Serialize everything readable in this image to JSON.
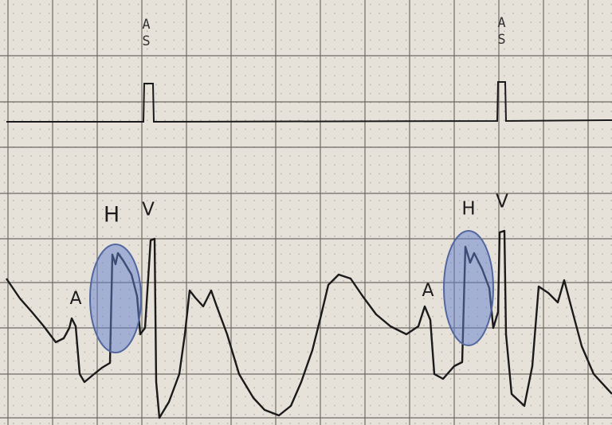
{
  "pacing_markers": [
    "AS",
    "AS"
  ],
  "beats": [
    {
      "a": "A",
      "h": "H",
      "v": "V"
    },
    {
      "a": "A",
      "h": "H",
      "v": "V"
    }
  ]
}
